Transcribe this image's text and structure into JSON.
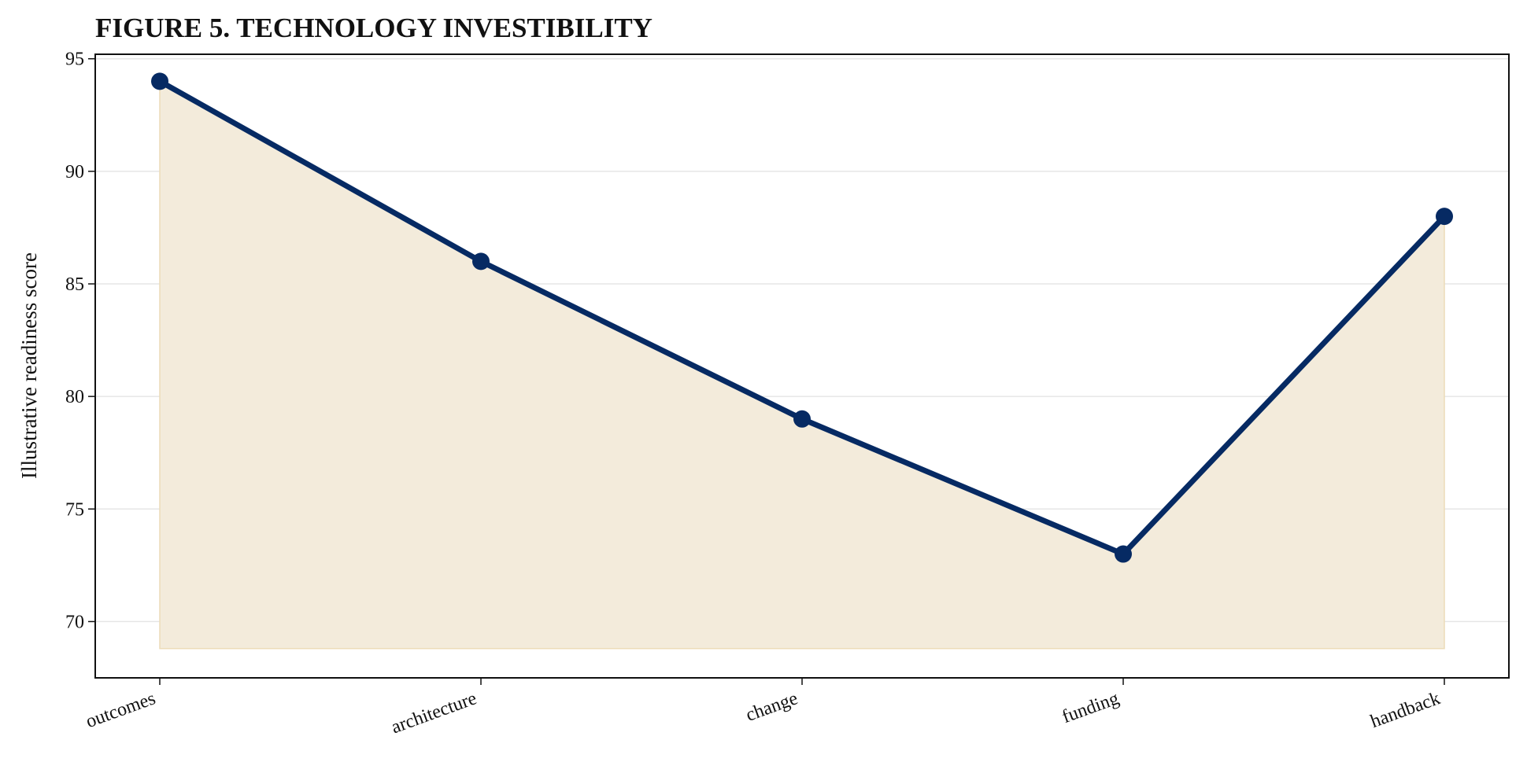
{
  "chart_data": {
    "type": "area",
    "title": "FIGURE 5. TECHNOLOGY INVESTIBILITY",
    "xlabel": "",
    "ylabel": "Illustrative readiness score",
    "categories": [
      "outcomes",
      "architecture",
      "change",
      "funding",
      "handback"
    ],
    "series": [
      {
        "values": [
          94,
          86,
          79,
          73,
          88
        ]
      }
    ],
    "ylim": [
      67.5,
      95.2
    ],
    "yticks": [
      70,
      75,
      80,
      85,
      90,
      95
    ],
    "area_baseline": 68.8,
    "grid": "horizontal",
    "legend": "none",
    "colors": {
      "line": "#062a63",
      "area_fill": "#f3ebdb",
      "area_edge": "#ecdcb8",
      "grid": "#e6e6e6",
      "axis": "#111111",
      "text": "#111111"
    }
  }
}
